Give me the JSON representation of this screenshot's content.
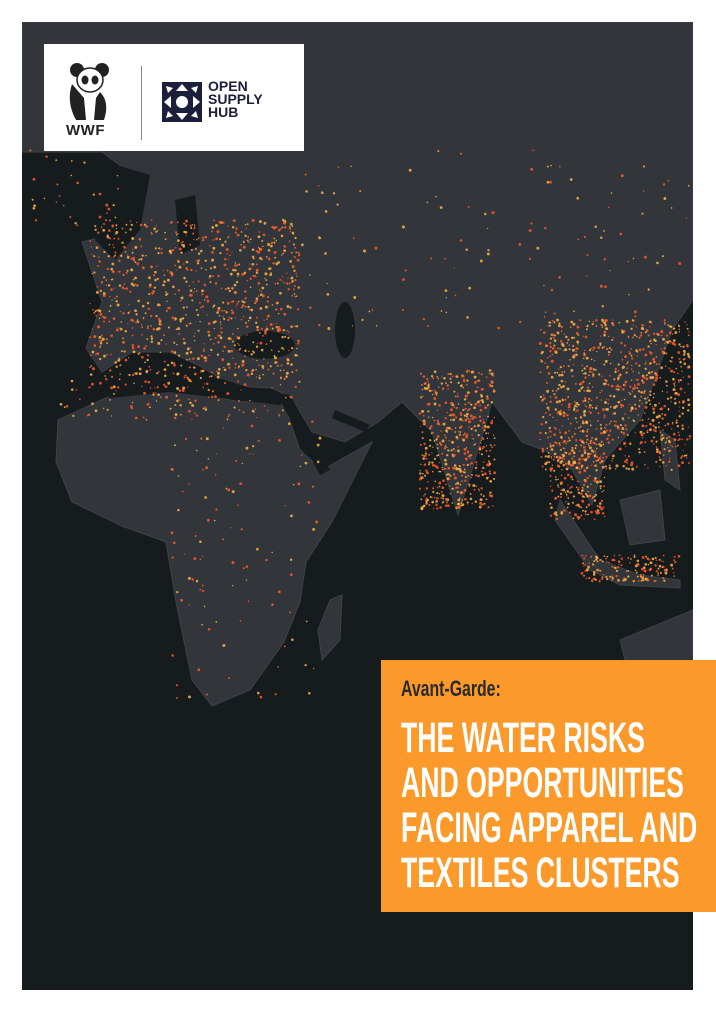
{
  "logos": {
    "wwf": "WWF",
    "open_supply_hub": [
      "OPEN",
      "SUPPLY",
      "HUB"
    ]
  },
  "cover": {
    "subtitle": "Avant-Garde:",
    "title_lines": [
      "THE WATER RISKS",
      "AND OPPORTUNITIES",
      "FACING APPAREL AND",
      "TEXTILES CLUSTERS"
    ]
  },
  "colors": {
    "accent": "#fb9a2a",
    "ocean": "#161b1d",
    "land": "#32363a",
    "facility_dot_hot": "#ff5a2a",
    "facility_dot_warm": "#ffb347"
  }
}
